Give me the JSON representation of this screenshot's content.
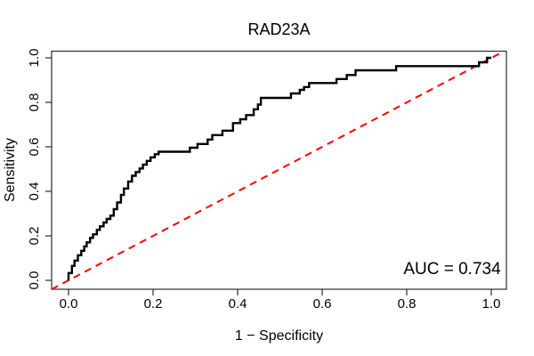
{
  "chart_data": {
    "type": "line",
    "subtype": "roc-curve",
    "title": "RAD23A",
    "xlabel": "1 − Specificity",
    "ylabel": "Sensitivity",
    "auc": 0.734,
    "auc_label": "AUC = 0.734",
    "xlim": [
      0,
      1
    ],
    "ylim": [
      0,
      1
    ],
    "x_tick_values": [
      0,
      0.2,
      0.4,
      0.6,
      0.8,
      1
    ],
    "x_tick_labels": [
      "0.0",
      "0.2",
      "0.4",
      "0.6",
      "0.8",
      "1.0"
    ],
    "y_tick_values": [
      0,
      0.2,
      0.4,
      0.6,
      0.8,
      1
    ],
    "y_tick_labels": [
      "0.0",
      "0.2",
      "0.4",
      "0.6",
      "0.8",
      "1.0"
    ],
    "grid": false,
    "legend": "none",
    "colors": {
      "curve": "#000000",
      "chance_line": "#FF0000",
      "box": "#2b2b2b"
    },
    "series": [
      {
        "name": "ROC curve",
        "draw": "polyline",
        "color": "#000000",
        "line_style": "solid",
        "line_width": 2.4,
        "points": [
          [
            0.0,
            0.0
          ],
          [
            0.0,
            0.033
          ],
          [
            0.008,
            0.033
          ],
          [
            0.008,
            0.065
          ],
          [
            0.014,
            0.065
          ],
          [
            0.014,
            0.089
          ],
          [
            0.022,
            0.089
          ],
          [
            0.022,
            0.113
          ],
          [
            0.03,
            0.113
          ],
          [
            0.03,
            0.133
          ],
          [
            0.037,
            0.133
          ],
          [
            0.037,
            0.153
          ],
          [
            0.043,
            0.153
          ],
          [
            0.043,
            0.171
          ],
          [
            0.051,
            0.171
          ],
          [
            0.051,
            0.191
          ],
          [
            0.058,
            0.191
          ],
          [
            0.058,
            0.207
          ],
          [
            0.067,
            0.207
          ],
          [
            0.067,
            0.227
          ],
          [
            0.074,
            0.227
          ],
          [
            0.074,
            0.243
          ],
          [
            0.083,
            0.243
          ],
          [
            0.083,
            0.26
          ],
          [
            0.09,
            0.26
          ],
          [
            0.09,
            0.276
          ],
          [
            0.099,
            0.276
          ],
          [
            0.099,
            0.291
          ],
          [
            0.107,
            0.291
          ],
          [
            0.107,
            0.32
          ],
          [
            0.115,
            0.32
          ],
          [
            0.115,
            0.35
          ],
          [
            0.124,
            0.35
          ],
          [
            0.124,
            0.384
          ],
          [
            0.131,
            0.384
          ],
          [
            0.131,
            0.413
          ],
          [
            0.141,
            0.413
          ],
          [
            0.141,
            0.444
          ],
          [
            0.15,
            0.444
          ],
          [
            0.15,
            0.47
          ],
          [
            0.159,
            0.47
          ],
          [
            0.159,
            0.487
          ],
          [
            0.168,
            0.487
          ],
          [
            0.168,
            0.503
          ],
          [
            0.176,
            0.503
          ],
          [
            0.176,
            0.52
          ],
          [
            0.185,
            0.52
          ],
          [
            0.185,
            0.537
          ],
          [
            0.194,
            0.537
          ],
          [
            0.194,
            0.553
          ],
          [
            0.204,
            0.553
          ],
          [
            0.204,
            0.567
          ],
          [
            0.213,
            0.567
          ],
          [
            0.213,
            0.578
          ],
          [
            0.287,
            0.578
          ],
          [
            0.287,
            0.596
          ],
          [
            0.305,
            0.596
          ],
          [
            0.305,
            0.613
          ],
          [
            0.329,
            0.613
          ],
          [
            0.329,
            0.633
          ],
          [
            0.34,
            0.633
          ],
          [
            0.34,
            0.653
          ],
          [
            0.364,
            0.653
          ],
          [
            0.364,
            0.673
          ],
          [
            0.389,
            0.673
          ],
          [
            0.389,
            0.707
          ],
          [
            0.406,
            0.707
          ],
          [
            0.406,
            0.724
          ],
          [
            0.42,
            0.724
          ],
          [
            0.42,
            0.743
          ],
          [
            0.438,
            0.743
          ],
          [
            0.438,
            0.769
          ],
          [
            0.448,
            0.769
          ],
          [
            0.448,
            0.79
          ],
          [
            0.455,
            0.79
          ],
          [
            0.455,
            0.82
          ],
          [
            0.526,
            0.82
          ],
          [
            0.526,
            0.84
          ],
          [
            0.547,
            0.84
          ],
          [
            0.547,
            0.856
          ],
          [
            0.557,
            0.856
          ],
          [
            0.557,
            0.869
          ],
          [
            0.569,
            0.869
          ],
          [
            0.569,
            0.887
          ],
          [
            0.634,
            0.887
          ],
          [
            0.634,
            0.905
          ],
          [
            0.658,
            0.905
          ],
          [
            0.658,
            0.923
          ],
          [
            0.679,
            0.923
          ],
          [
            0.679,
            0.944
          ],
          [
            0.775,
            0.944
          ],
          [
            0.775,
            0.963
          ],
          [
            0.971,
            0.963
          ],
          [
            0.971,
            0.98
          ],
          [
            0.99,
            0.98
          ],
          [
            0.99,
            1.0
          ],
          [
            1.0,
            1.0
          ]
        ]
      },
      {
        "name": "chance diagonal",
        "draw": "line",
        "color": "#FF0000",
        "line_style": "dashed",
        "line_width": 2,
        "points": [
          [
            0,
            0
          ],
          [
            1,
            1
          ]
        ]
      }
    ]
  }
}
